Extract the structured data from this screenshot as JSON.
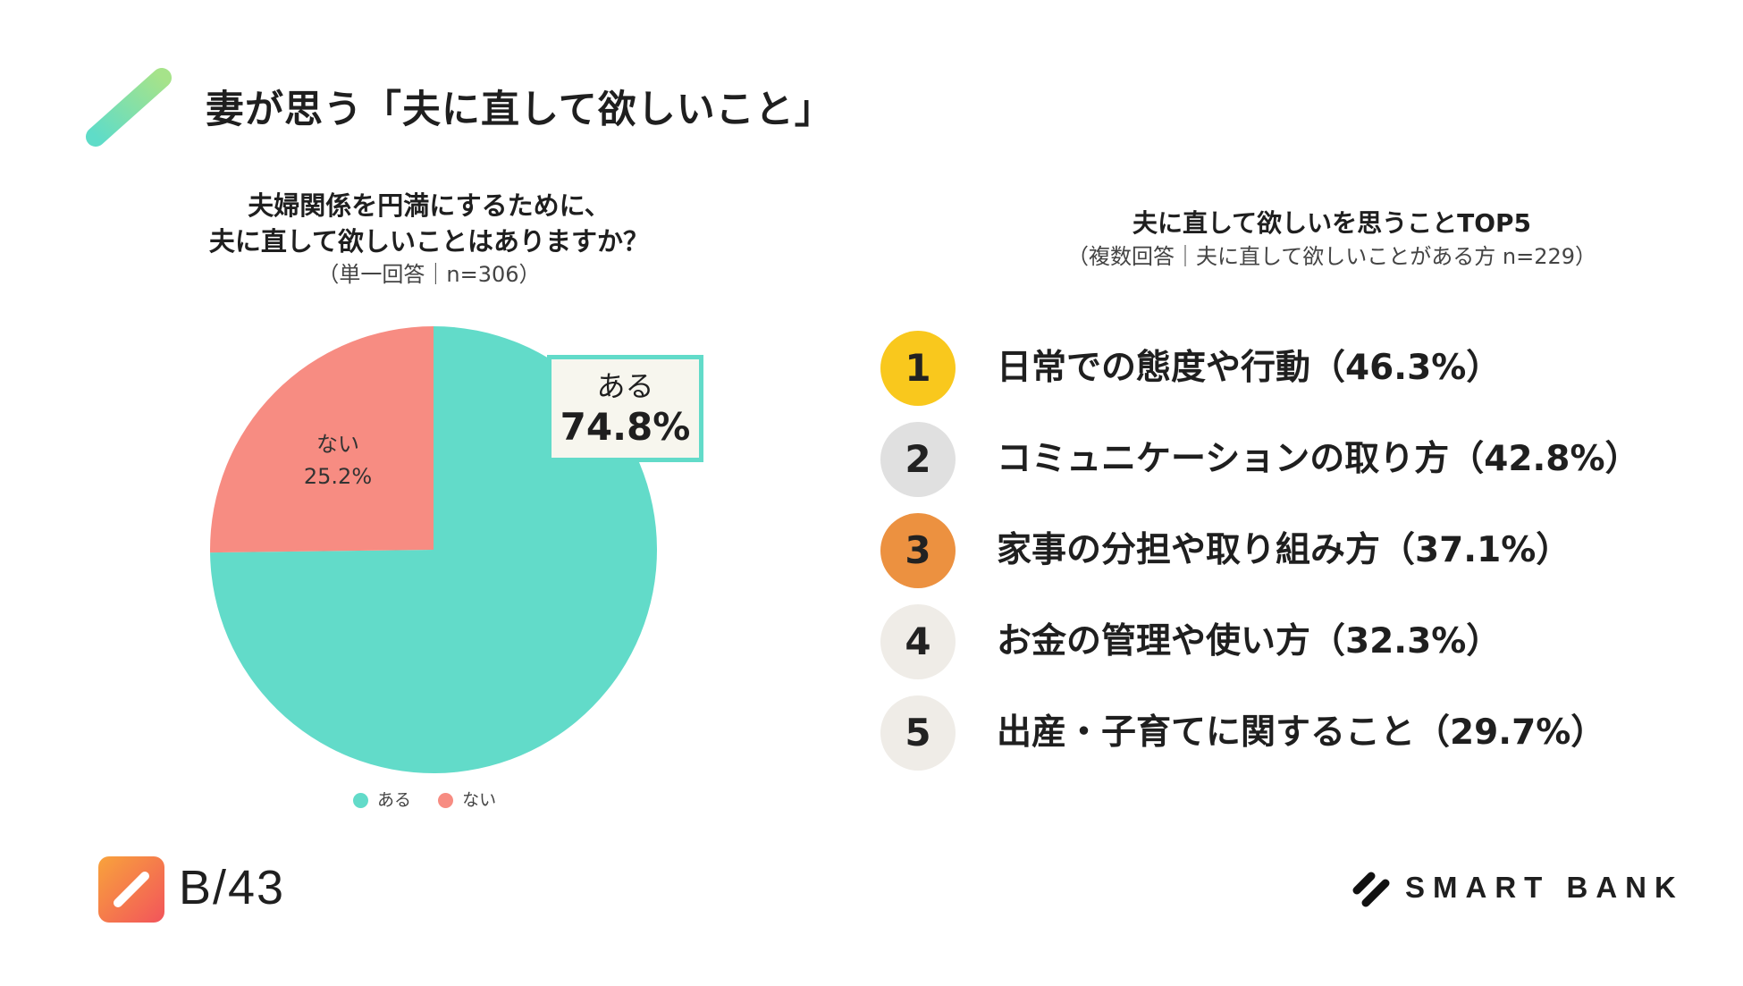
{
  "page_title": "妻が思う「夫に直して欲しいこと」",
  "left_chart": {
    "question_line1": "夫婦関係を円満にするために、",
    "question_line2": "夫に直して欲しいことはありますか？",
    "note": "（単一回答｜n=306）",
    "callout_label": "ある",
    "callout_value": "74.8%",
    "slice_no_label": "ない",
    "slice_no_value": "25.2%",
    "legend": [
      {
        "label": "ある",
        "color": "#62dbc9"
      },
      {
        "label": "ない",
        "color": "#f78c82"
      }
    ]
  },
  "right_chart": {
    "title": "夫に直して欲しいを思うことTOP5",
    "note": "（複数回答｜夫に直して欲しいことがある方 n=229）",
    "items": [
      {
        "rank": "1",
        "text": "日常での態度や行動（46.3%）",
        "color": "#f9c81d"
      },
      {
        "rank": "2",
        "text": "コミュニケーションの取り方（42.8%）",
        "color": "#e0e0e0"
      },
      {
        "rank": "3",
        "text": "家事の分担や取り組み方（37.1%）",
        "color": "#ec9140"
      },
      {
        "rank": "4",
        "text": "お金の管理や使い方（32.3%）",
        "color": "#efece7"
      },
      {
        "rank": "5",
        "text": "出産・子育てに関すること（29.7%）",
        "color": "#efece7"
      }
    ]
  },
  "footer": {
    "page_number": "B/43",
    "brand": "SMART BANK"
  },
  "chart_data": [
    {
      "type": "pie",
      "categories": [
        "ある",
        "ない"
      ],
      "values": [
        74.8,
        25.2
      ],
      "colors": [
        "#62dbc9",
        "#f78c82"
      ],
      "title": "夫婦関係を円満にするために、夫に直して欲しいことはありますか？",
      "legend_placement": "bottom"
    },
    {
      "type": "table",
      "title": "夫に直して欲しいを思うことTOP5",
      "categories": [
        "日常での態度や行動",
        "コミュニケーションの取り方",
        "家事の分担や取り組み方",
        "お金の管理や使い方",
        "出産・子育てに関すること"
      ],
      "values": [
        46.3,
        42.8,
        37.1,
        32.3,
        29.7
      ]
    }
  ]
}
